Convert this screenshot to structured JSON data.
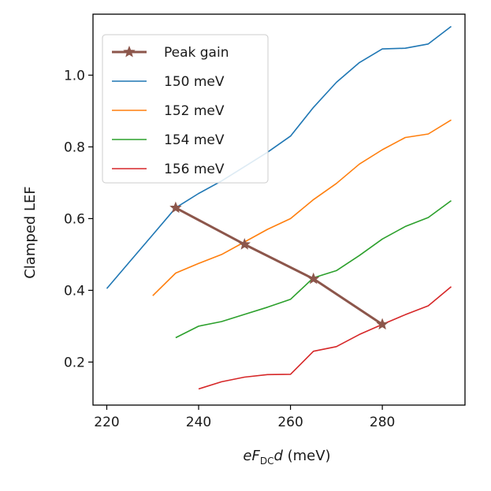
{
  "chart_data": {
    "type": "line",
    "title": "",
    "xlabel_prefix": "eF",
    "xlabel_sub": "DC",
    "xlabel_mid": "d",
    "xlabel_suffix": " (meV)",
    "ylabel": "Clamped LEF",
    "xlim": [
      217,
      298
    ],
    "ylim": [
      0.08,
      1.17
    ],
    "xticks": [
      220,
      240,
      260,
      280
    ],
    "yticks": [
      0.2,
      0.4,
      0.6,
      0.8,
      1.0
    ],
    "ytick_labels": [
      "0.2",
      "0.4",
      "0.6",
      "0.8",
      "1.0"
    ],
    "legend_position": "top-left",
    "series": [
      {
        "name": "Peak gain",
        "color": "#8c564b",
        "marker": "star",
        "x": [
          235,
          250,
          265,
          280
        ],
        "y": [
          0.63,
          0.528,
          0.432,
          0.305
        ]
      },
      {
        "name": "150 meV",
        "color": "#1f77b4",
        "x": [
          220,
          225,
          230,
          235,
          240,
          245,
          250,
          255,
          260,
          265,
          270,
          275,
          280,
          285,
          290,
          295
        ],
        "y": [
          0.405,
          0.48,
          0.555,
          0.63,
          0.67,
          0.705,
          0.745,
          0.785,
          0.83,
          0.91,
          0.98,
          1.035,
          1.073,
          1.075,
          1.087,
          1.136
        ]
      },
      {
        "name": "152 meV",
        "color": "#ff7f0e",
        "x": [
          230,
          235,
          240,
          245,
          250,
          255,
          260,
          265,
          270,
          275,
          280,
          285,
          290,
          295
        ],
        "y": [
          0.385,
          0.448,
          0.475,
          0.5,
          0.535,
          0.57,
          0.6,
          0.653,
          0.698,
          0.752,
          0.792,
          0.826,
          0.836,
          0.875
        ]
      },
      {
        "name": "154 meV",
        "color": "#2ca02c",
        "x": [
          235,
          240,
          245,
          250,
          255,
          260,
          265,
          270,
          275,
          280,
          285,
          290,
          295
        ],
        "y": [
          0.268,
          0.3,
          0.313,
          0.333,
          0.353,
          0.375,
          0.435,
          0.455,
          0.497,
          0.543,
          0.578,
          0.603,
          0.65
        ]
      },
      {
        "name": "156 meV",
        "color": "#d62728",
        "x": [
          240,
          245,
          250,
          255,
          260,
          265,
          270,
          275,
          280,
          285,
          290,
          295
        ],
        "y": [
          0.125,
          0.145,
          0.158,
          0.165,
          0.166,
          0.23,
          0.243,
          0.277,
          0.305,
          0.332,
          0.357,
          0.41
        ]
      }
    ]
  }
}
